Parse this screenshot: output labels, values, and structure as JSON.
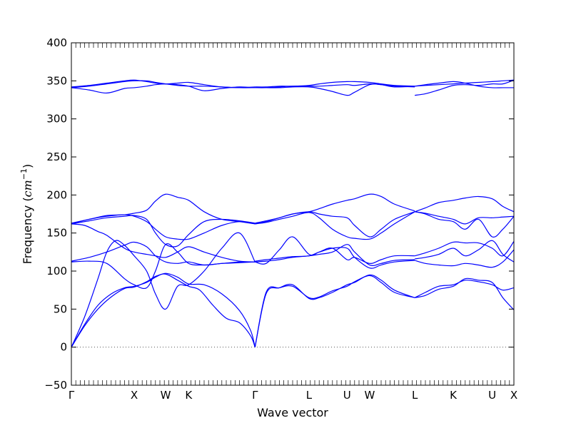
{
  "chart_data": {
    "type": "line",
    "xlabel": "Wave vector",
    "ylabel_text": "Frequency (",
    "ylabel_unit": "cm",
    "ylabel_exp": "−1",
    "ylabel_close": ")",
    "ylim": [
      -50,
      400
    ],
    "yticks": [
      -50,
      0,
      50,
      100,
      150,
      200,
      250,
      300,
      350,
      400
    ],
    "ytick_labels": [
      "−50",
      "0",
      "50",
      "100",
      "150",
      "200",
      "250",
      "300",
      "350",
      "400"
    ],
    "xlim": [
      0,
      100
    ],
    "special_points": [
      {
        "label": "Γ",
        "x": 0
      },
      {
        "label": "X",
        "x": 14.2
      },
      {
        "label": "W",
        "x": 21.3
      },
      {
        "label": "K",
        "x": 26.5
      },
      {
        "label": "Γ",
        "x": 41.5
      },
      {
        "label": "L",
        "x": 53.7
      },
      {
        "label": "U",
        "x": 62.3
      },
      {
        "label": "W",
        "x": 67.4
      },
      {
        "label": "L",
        "x": 77.6
      },
      {
        "label": "K",
        "x": 86.3
      },
      {
        "label": "U",
        "x": 95.1
      },
      {
        "label": "X",
        "x": 100
      }
    ],
    "zero_line": true,
    "line_color": "#0000ff",
    "series": [
      {
        "x": [
          0,
          3,
          6,
          9,
          12,
          14.2,
          17,
          19,
          21.3,
          24,
          26.5,
          29,
          32,
          35,
          38,
          40.5,
          41.5
        ],
        "y": [
          0,
          28,
          50,
          66,
          77,
          79,
          86,
          93,
          96,
          88,
          80,
          75,
          55,
          38,
          32,
          15,
          0
        ]
      },
      {
        "x": [
          0,
          3,
          6,
          9,
          12,
          14.2,
          17,
          19,
          21.3,
          24,
          26.5,
          30,
          34,
          38,
          40.5,
          41.5
        ],
        "y": [
          0,
          30,
          55,
          70,
          78,
          80,
          85,
          92,
          97,
          92,
          83,
          82,
          70,
          48,
          22,
          0
        ]
      },
      {
        "x": [
          0,
          3,
          6,
          8,
          10,
          12,
          14.2,
          17,
          19,
          21.3,
          24,
          26.5,
          30,
          34,
          38,
          41.5
        ],
        "y": [
          0,
          40,
          90,
          125,
          140,
          134,
          120,
          100,
          70,
          50,
          80,
          82,
          100,
          130,
          150,
          112
        ]
      },
      {
        "x": [
          0,
          4,
          8,
          12,
          14.2,
          17,
          19,
          21.3,
          24,
          26.5,
          30,
          34,
          38,
          41.5
        ],
        "y": [
          112,
          113,
          110,
          90,
          82,
          78,
          100,
          135,
          125,
          110,
          108,
          110,
          112,
          112
        ]
      },
      {
        "x": [
          0,
          4,
          8,
          12,
          14.2,
          17,
          19,
          21.3,
          24,
          26.5,
          30,
          34,
          38,
          41.5
        ],
        "y": [
          113,
          118,
          125,
          134,
          138,
          132,
          120,
          112,
          110,
          112,
          108,
          110,
          111,
          112
        ]
      },
      {
        "x": [
          0,
          3,
          6,
          8,
          12,
          14.2,
          17,
          19,
          21.3,
          24,
          26.5,
          30,
          34,
          38,
          41.5
        ],
        "y": [
          162,
          160,
          152,
          147,
          130,
          125,
          122,
          120,
          118,
          125,
          132,
          125,
          118,
          113,
          112
        ]
      },
      {
        "x": [
          0,
          4,
          8,
          12,
          14.2,
          17,
          19,
          21.3,
          24,
          26.5,
          30,
          34,
          38,
          41.5
        ],
        "y": [
          162,
          168,
          172,
          174,
          172,
          165,
          155,
          145,
          142,
          142,
          150,
          160,
          165,
          162
        ]
      },
      {
        "x": [
          0,
          4,
          8,
          12,
          14.2,
          17,
          19,
          21.3,
          24,
          26.5,
          30,
          34,
          38,
          41.5
        ],
        "y": [
          163,
          168,
          173,
          174,
          176,
          180,
          192,
          201,
          197,
          193,
          178,
          168,
          165,
          162
        ]
      },
      {
        "x": [
          0,
          4,
          8,
          12,
          14.2,
          17,
          19,
          21.3,
          24,
          26.5,
          30,
          34,
          38,
          41.5
        ],
        "y": [
          162,
          166,
          170,
          172,
          173,
          168,
          150,
          135,
          133,
          148,
          165,
          168,
          166,
          163
        ]
      },
      {
        "x": [
          0,
          4,
          8,
          12,
          14.2,
          17,
          19,
          21.3,
          24,
          26.5,
          30,
          34,
          38,
          41.5
        ],
        "y": [
          341,
          338,
          334,
          340,
          341,
          343,
          345,
          346,
          345,
          343,
          337,
          340,
          342,
          341
        ]
      },
      {
        "x": [
          0,
          4,
          8,
          12,
          14.2,
          17,
          19,
          21.3,
          24,
          26.5,
          30,
          34,
          38,
          41.5
        ],
        "y": [
          341,
          343,
          346,
          349,
          350,
          350,
          348,
          346,
          344,
          343,
          343,
          342,
          341,
          341
        ]
      },
      {
        "x": [
          0,
          4,
          8,
          12,
          14.2,
          17,
          19,
          21.3,
          24,
          26.5,
          30,
          34,
          38,
          41.5
        ],
        "y": [
          342,
          344,
          347,
          350,
          351,
          349,
          347,
          346,
          347,
          348,
          345,
          342,
          341,
          342
        ]
      },
      {
        "x": [
          41.5,
          44,
          47,
          50,
          53.7,
          56,
          59,
          62.3,
          64,
          67.4,
          70,
          73,
          77.6
        ],
        "y": [
          0,
          70,
          78,
          82,
          64,
          65,
          72,
          82,
          85,
          95,
          88,
          75,
          65
        ]
      },
      {
        "x": [
          41.5,
          44,
          47,
          50,
          53.7,
          56,
          59,
          62.3,
          64,
          67.4,
          70,
          73,
          77.6
        ],
        "y": [
          0,
          72,
          78,
          80,
          65,
          66,
          74,
          80,
          86,
          94,
          85,
          72,
          65
        ]
      },
      {
        "x": [
          41.5,
          44,
          47,
          50,
          53.7,
          56,
          59,
          62.3,
          64,
          67.4,
          70,
          73,
          77.6
        ],
        "y": [
          112,
          110,
          128,
          145,
          122,
          125,
          130,
          130,
          118,
          104,
          108,
          112,
          114
        ]
      },
      {
        "x": [
          41.5,
          44,
          47,
          50,
          53.7,
          56,
          59,
          62.3,
          64,
          67.4,
          70,
          73,
          77.6
        ],
        "y": [
          112,
          113,
          115,
          118,
          120,
          122,
          125,
          135,
          125,
          108,
          110,
          114,
          115
        ]
      },
      {
        "x": [
          41.5,
          44,
          47,
          50,
          53.7,
          56,
          59,
          62.3,
          64,
          67.4,
          70,
          73,
          77.6
        ],
        "y": [
          113,
          115,
          117,
          119,
          120,
          125,
          130,
          115,
          118,
          110,
          115,
          120,
          120
        ]
      },
      {
        "x": [
          41.5,
          44,
          47,
          50,
          53.7,
          56,
          59,
          62.3,
          64,
          67.4,
          70,
          73,
          77.6
        ],
        "y": [
          162,
          164,
          168,
          172,
          177,
          170,
          155,
          145,
          143,
          142,
          150,
          162,
          178
        ]
      },
      {
        "x": [
          41.5,
          44,
          47,
          50,
          53.7,
          56,
          59,
          62.3,
          64,
          67.4,
          70,
          73,
          77.6
        ],
        "y": [
          162,
          165,
          170,
          175,
          178,
          175,
          172,
          170,
          160,
          145,
          155,
          168,
          178
        ]
      },
      {
        "x": [
          41.5,
          44,
          47,
          50,
          53.7,
          56,
          59,
          62.3,
          64,
          67.4,
          70,
          73,
          77.6
        ],
        "y": [
          163,
          166,
          170,
          175,
          178,
          182,
          188,
          193,
          195,
          201,
          198,
          188,
          179
        ]
      },
      {
        "x": [
          41.5,
          44,
          47,
          50,
          53.7,
          56,
          59,
          62.3,
          64,
          67.4,
          70,
          73,
          77.6
        ],
        "y": [
          341,
          341,
          341,
          342,
          342,
          340,
          336,
          331,
          335,
          345,
          345,
          342,
          343
        ]
      },
      {
        "x": [
          41.5,
          44,
          47,
          50,
          53.7,
          56,
          59,
          62.3,
          64,
          67.4,
          70,
          73,
          77.6
        ],
        "y": [
          341,
          341,
          342,
          343,
          343,
          343,
          344,
          345,
          344,
          346,
          345,
          343,
          342
        ]
      },
      {
        "x": [
          41.5,
          44,
          47,
          50,
          53.7,
          56,
          59,
          62.3,
          64,
          67.4,
          70,
          73,
          77.6
        ],
        "y": [
          342,
          342,
          343,
          343,
          344,
          346,
          348,
          349,
          349,
          348,
          346,
          344,
          343
        ]
      },
      {
        "x": [
          77.6,
          80,
          83,
          86.3,
          89,
          92,
          95.1,
          97.5,
          100
        ],
        "y": [
          65,
          72,
          80,
          82,
          88,
          86,
          82,
          75,
          78
        ]
      },
      {
        "x": [
          77.6,
          80,
          83,
          86.3,
          89,
          92,
          95.1,
          97.5,
          100
        ],
        "y": [
          65,
          68,
          76,
          80,
          90,
          88,
          85,
          65,
          49
        ]
      },
      {
        "x": [
          77.6,
          80,
          83,
          86.3,
          89,
          92,
          95.1,
          97.5,
          100
        ],
        "y": [
          114,
          110,
          108,
          107,
          110,
          108,
          105,
          112,
          128
        ]
      },
      {
        "x": [
          77.6,
          80,
          83,
          86.3,
          89,
          92,
          95.1,
          97.5,
          100
        ],
        "y": [
          116,
          118,
          122,
          130,
          120,
          128,
          140,
          122,
          112
        ]
      },
      {
        "x": [
          77.6,
          80,
          83,
          86.3,
          89,
          92,
          95.1,
          97.5,
          100
        ],
        "y": [
          120,
          124,
          130,
          138,
          137,
          137,
          130,
          120,
          139
        ]
      },
      {
        "x": [
          77.6,
          80,
          83,
          86.3,
          89,
          92,
          95.1,
          97.5,
          100
        ],
        "y": [
          178,
          175,
          168,
          165,
          155,
          168,
          145,
          155,
          172
        ]
      },
      {
        "x": [
          77.6,
          80,
          83,
          86.3,
          89,
          92,
          95.1,
          97.5,
          100
        ],
        "y": [
          178,
          176,
          172,
          168,
          162,
          170,
          170,
          171,
          172
        ]
      },
      {
        "x": [
          77.6,
          80,
          83,
          86.3,
          89,
          92,
          95.1,
          97.5,
          100
        ],
        "y": [
          178,
          183,
          190,
          193,
          196,
          198,
          195,
          185,
          178
        ]
      },
      {
        "x": [
          77.6,
          80,
          83,
          86.3,
          89,
          92,
          95.1,
          97.5,
          100
        ],
        "y": [
          331,
          333,
          338,
          344,
          345,
          344,
          346,
          346,
          351
        ]
      },
      {
        "x": [
          77.6,
          80,
          83,
          86.3,
          89,
          92,
          95.1,
          97.5,
          100
        ],
        "y": [
          343,
          344,
          345,
          346,
          347,
          348,
          349,
          350,
          351
        ]
      },
      {
        "x": [
          77.6,
          80,
          83,
          86.3,
          89,
          92,
          95.1,
          97.5,
          100
        ],
        "y": [
          343,
          345,
          347,
          349,
          347,
          343,
          341,
          341,
          341
        ]
      }
    ]
  }
}
